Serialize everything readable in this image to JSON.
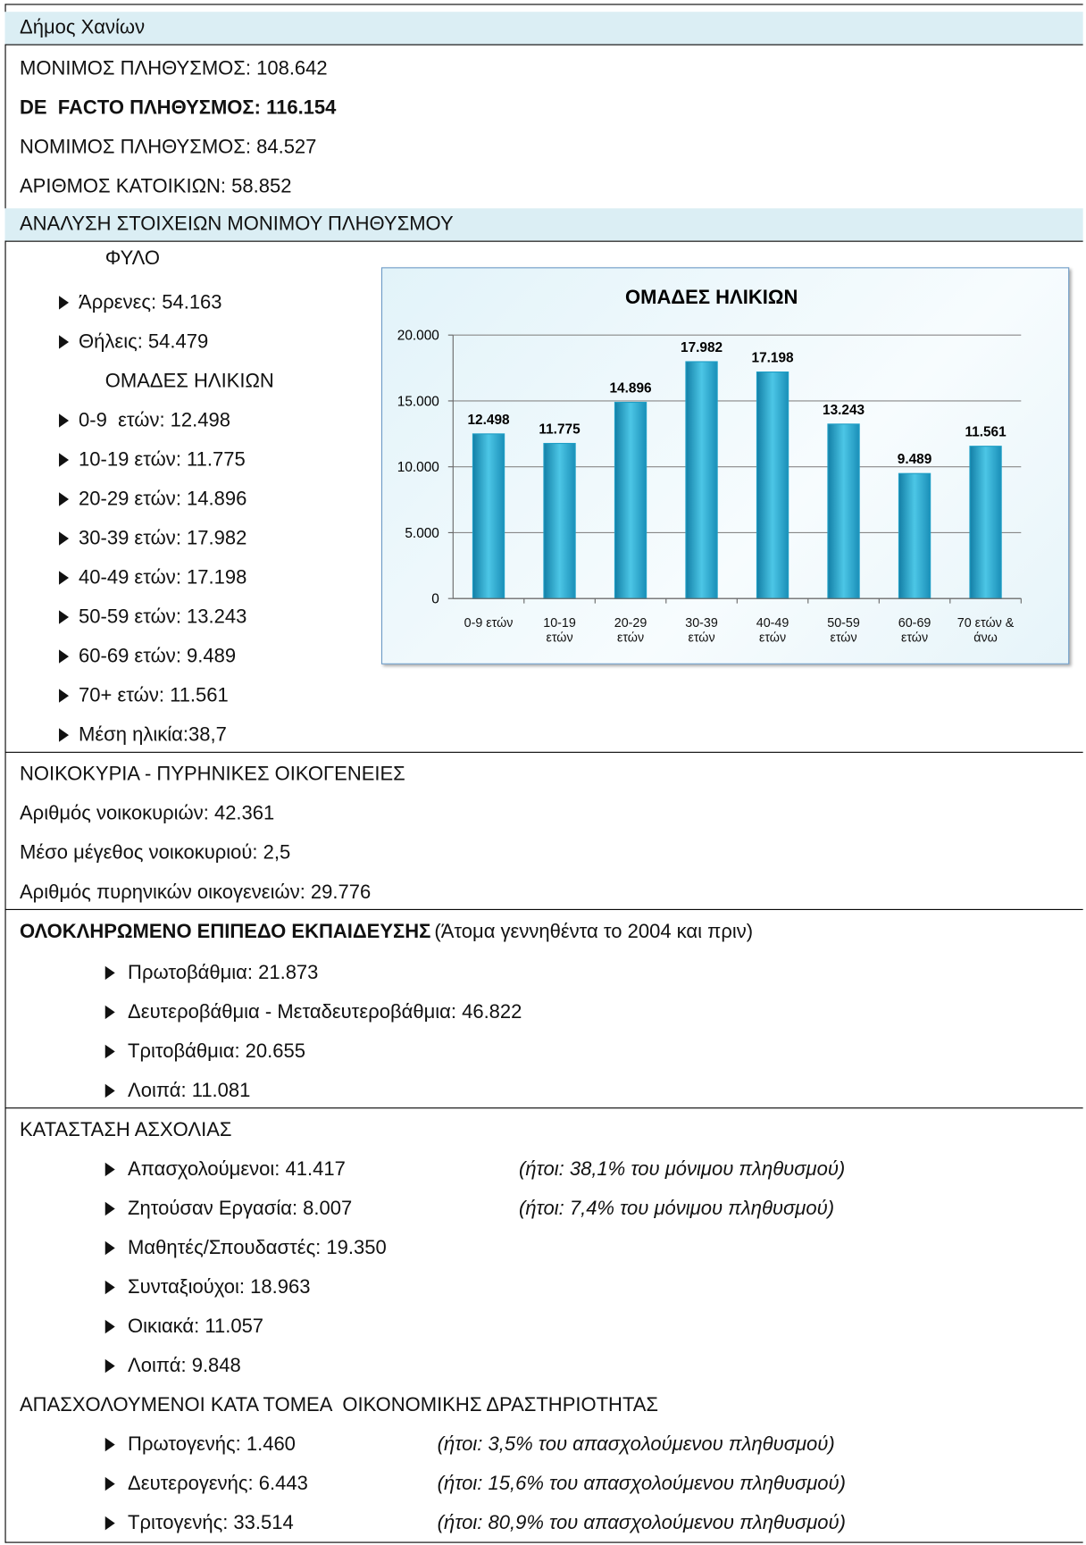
{
  "title": "Δήμος Χανίων",
  "summary": [
    "ΜΟΝΙΜΟΣ ΠΛΗΘΥΣΜΟΣ: 108.642",
    "DE  FACTO ΠΛΗΘΥΣΜΟΣ: 116.154",
    "ΝΟΜΙΜΟΣ ΠΛΗΘΥΣΜΟΣ: 84.527",
    "ΑΡΙΘΜΟΣ ΚΑΤΟΙΚΙΩΝ: 58.852"
  ],
  "population": {
    "title": "ΑΝΑΛΥΣΗ ΣΤΟΙΧΕΙΩΝ ΜΟΝΙΜΟΥ ΠΛΗΘΥΣΜΟΥ",
    "sex_heading": "ΦΥΛΟ",
    "sex": [
      "Άρρενες: 54.163",
      "Θήλεις: 54.479"
    ],
    "age_heading": "ΟΜΑΔΕΣ ΗΛΙΚΙΩΝ",
    "ages": [
      "0-9  ετών: 12.498",
      "10-19 ετών: 11.775",
      "20-29 ετών: 14.896",
      "30-39 ετών: 17.982",
      "40-49 ετών: 17.198",
      "50-59 ετών: 13.243",
      "60-69 ετών: 9.489",
      "70+ ετών: 11.561",
      "Μέση ηλικία:38,7"
    ]
  },
  "households": {
    "title": "ΝΟΙΚΟΚΥΡΙΑ - ΠΥΡΗΝΙΚΕΣ ΟΙΚΟΓΕΝΕΙΕΣ",
    "items": [
      "Αριθμός νοικοκυριών: 42.361",
      "Μέσο μέγεθος νοικοκυριού: 2,5",
      "Αριθμός πυρηνικών οικογενειών: 29.776"
    ]
  },
  "education": {
    "title": "ΟΛΟΚΛΗΡΩΜΕΝΟ ΕΠΙΠΕΔΟ ΕΚΠΑΙΔΕΥΣΗΣ",
    "note": "(Άτομα γεννηθέντα το 2004 και πριν)",
    "items": [
      "Πρωτοβάθμια: 21.873",
      "Δευτεροβάθμια - Μεταδευτεροβάθμια: 46.822",
      "Τριτοβάθμια: 20.655",
      "Λοιπά: 11.081"
    ]
  },
  "employment": {
    "title": "ΚΑΤΑΣΤΑΣΗ ΑΣΧΟΛΙΑΣ",
    "items": [
      {
        "text": "Απασχολούμενοι: 41.417",
        "note": "(ήτοι: 38,1% του μόνιμου πληθυσμού)"
      },
      {
        "text": "Ζητούσαν Εργασία: 8.007",
        "note": "(ήτοι: 7,4% του μόνιμου πληθυσμού)"
      },
      {
        "text": "Μαθητές/Σπουδαστές: 19.350"
      },
      {
        "text": "Συνταξιούχοι: 18.963"
      },
      {
        "text": "Οικιακά: 11.057"
      },
      {
        "text": "Λοιπά: 9.848"
      }
    ]
  },
  "sectors": {
    "title": "ΑΠΑΣΧΟΛΟΥΜΕΝΟΙ ΚΑΤΑ ΤΟΜΕΑ  ΟΙΚΟΝΟΜΙΚΗΣ ΔΡΑΣΤΗΡΙΟΤΗΤΑΣ",
    "items": [
      {
        "text": "Πρωτογενής: 1.460",
        "note": "(ήτοι: 3,5% του απασχολούμενου πληθυσμού)"
      },
      {
        "text": "Δευτερογενής: 6.443",
        "note": "(ήτοι: 15,6% του απασχολούμενου πληθυσμού)"
      },
      {
        "text": "Τριτογενής: 33.514",
        "note": "(ήτοι: 80,9% του απασχολούμενου πληθυσμού)"
      }
    ]
  },
  "chart_data": {
    "type": "bar",
    "title": "ΟΜΑΔΕΣ ΗΛΙΚΙΩΝ",
    "categories": [
      "0-9 ετών",
      "10-19 ετών",
      "20-29 ετών",
      "30-39 ετών",
      "40-49 ετών",
      "50-59 ετών",
      "60-69 ετών",
      "70 ετών & άνω"
    ],
    "values": [
      12498,
      11775,
      14896,
      17982,
      17198,
      13243,
      9489,
      11561
    ],
    "value_labels": [
      "12.498",
      "11.775",
      "14.896",
      "17.982",
      "17.198",
      "13.243",
      "9.489",
      "11.561"
    ],
    "color": "#1e9fc6",
    "ylim": [
      0,
      20000
    ],
    "yticks": [
      0,
      {
        "value": 5000,
        "label": "5.000"
      },
      {
        "value": 10000,
        "label": "10.000"
      },
      {
        "value": 15000,
        "label": "15.000"
      },
      {
        "value": 20000,
        "label": "20.000"
      }
    ],
    "grid": true
  }
}
